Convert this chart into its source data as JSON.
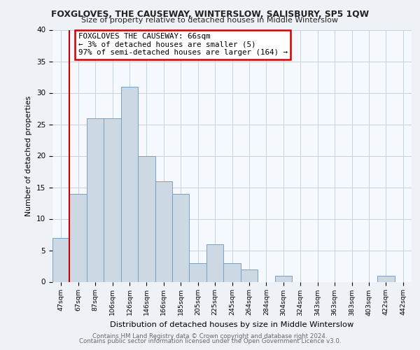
{
  "title": "FOXGLOVES, THE CAUSEWAY, WINTERSLOW, SALISBURY, SP5 1QW",
  "subtitle": "Size of property relative to detached houses in Middle Winterslow",
  "xlabel": "Distribution of detached houses by size in Middle Winterslow",
  "ylabel": "Number of detached properties",
  "bar_labels": [
    "47sqm",
    "67sqm",
    "87sqm",
    "106sqm",
    "126sqm",
    "146sqm",
    "166sqm",
    "185sqm",
    "205sqm",
    "225sqm",
    "245sqm",
    "264sqm",
    "284sqm",
    "304sqm",
    "324sqm",
    "343sqm",
    "363sqm",
    "383sqm",
    "403sqm",
    "422sqm",
    "442sqm"
  ],
  "bar_values": [
    7,
    14,
    26,
    26,
    31,
    20,
    16,
    14,
    3,
    6,
    3,
    2,
    0,
    1,
    0,
    0,
    0,
    0,
    0,
    1,
    0
  ],
  "bar_color": "#cdd8e5",
  "bar_edge_color": "#7a9fc0",
  "ylim": [
    0,
    40
  ],
  "annotation_title": "FOXGLOVES THE CAUSEWAY: 66sqm",
  "annotation_line1": "← 3% of detached houses are smaller (5)",
  "annotation_line2": "97% of semi-detached houses are larger (164) →",
  "marker_color": "#cc0000",
  "footer1": "Contains HM Land Registry data © Crown copyright and database right 2024.",
  "footer2": "Contains public sector information licensed under the Open Government Licence v3.0.",
  "bg_color": "#eef2f7",
  "plot_bg_color": "#f5f8fc"
}
